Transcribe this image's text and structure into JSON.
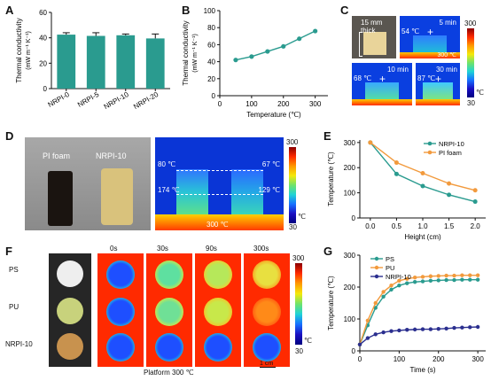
{
  "panels": {
    "A": "A",
    "B": "B",
    "C": "C",
    "D": "D",
    "E": "E",
    "F": "F",
    "G": "G"
  },
  "colors": {
    "teal": "#2a9b8f",
    "orange": "#f29a3d",
    "navy": "#2b2f8f"
  },
  "chart_data": [
    {
      "id": "A",
      "type": "bar",
      "categories": [
        "NRPI-0",
        "NRPI-5",
        "NRPI-10",
        "NRPI-20"
      ],
      "values": [
        42.5,
        41.5,
        42,
        39.5
      ],
      "errors": [
        1.5,
        2.5,
        1,
        3.5
      ],
      "ylabel": "Thermal conductivity",
      "yunit": "(mW m⁻¹ K⁻¹)",
      "ylim": [
        0,
        60
      ],
      "yticks": [
        "0",
        "20",
        "40",
        "60"
      ]
    },
    {
      "id": "B",
      "type": "line",
      "x": [
        50,
        100,
        150,
        200,
        250,
        300
      ],
      "y": [
        42,
        46,
        52,
        58,
        67,
        76
      ],
      "xlabel": "Temperature (℃)",
      "ylabel": "Thermal conductivity",
      "yunit": "(mW m⁻¹ K⁻¹)",
      "xlim": [
        0,
        340
      ],
      "ylim": [
        0,
        100
      ],
      "xticks": [
        "0",
        "100",
        "200",
        "300"
      ],
      "yticks": [
        "0",
        "20",
        "40",
        "60",
        "80",
        "100"
      ]
    },
    {
      "id": "E",
      "type": "line",
      "x": [
        0,
        0.5,
        1.0,
        1.5,
        2.0
      ],
      "series": [
        {
          "name": "NRPI-10",
          "values": [
            300,
            175,
            127,
            92,
            65
          ]
        },
        {
          "name": "PI foam",
          "values": [
            300,
            220,
            178,
            137,
            110
          ]
        }
      ],
      "xlabel": "Height (cm)",
      "ylabel": "Temperature (℃)",
      "xlim": [
        -0.2,
        2.2
      ],
      "ylim": [
        0,
        310
      ],
      "xticks": [
        "0.0",
        "0.5",
        "1.0",
        "1.5",
        "2.0"
      ],
      "yticks": [
        "0",
        "100",
        "200",
        "300"
      ]
    },
    {
      "id": "G",
      "type": "line",
      "x": [
        0,
        20,
        40,
        60,
        80,
        100,
        120,
        140,
        160,
        180,
        200,
        220,
        240,
        260,
        280,
        300
      ],
      "series": [
        {
          "name": "PS",
          "values": [
            20,
            80,
            135,
            170,
            192,
            205,
            212,
            216,
            218,
            220,
            221,
            222,
            222,
            223,
            223,
            223
          ]
        },
        {
          "name": "PU",
          "values": [
            20,
            95,
            150,
            185,
            205,
            220,
            226,
            230,
            232,
            234,
            235,
            236,
            236,
            237,
            237,
            237
          ]
        },
        {
          "name": "NRPI-10",
          "values": [
            20,
            40,
            52,
            58,
            62,
            64,
            66,
            67,
            68,
            68,
            69,
            70,
            72,
            73,
            74,
            75
          ]
        }
      ],
      "xlabel": "Time (s)",
      "ylabel": "Temperature (℃)",
      "xlim": [
        0,
        320
      ],
      "ylim": [
        0,
        300
      ],
      "xticks": [
        "0",
        "100",
        "200",
        "300"
      ],
      "yticks": [
        "0",
        "100",
        "200",
        "300"
      ]
    }
  ],
  "thermal_c": {
    "photo_label": "15 mm thick",
    "tiles": [
      {
        "time": "5 min",
        "temp": "54 ℃",
        "base": "300 ℃"
      },
      {
        "time": "10 min",
        "temp": "68 ℃"
      },
      {
        "time": "30 min",
        "temp": "87 ℃"
      }
    ],
    "cbar": {
      "max": "300",
      "unit": "℃",
      "min": "30"
    }
  },
  "thermal_d": {
    "photo_labels": [
      "PI foam",
      "NRPI-10"
    ],
    "temps": [
      "80 ℃",
      "67 ℃",
      "174 ℃",
      "129 ℃",
      "300 ℃"
    ],
    "cbar": {
      "max": "300",
      "unit": "℃",
      "min": "30"
    }
  },
  "panel_f": {
    "rows": [
      "PS",
      "PU",
      "NRPI-10"
    ],
    "times": [
      "0s",
      "30s",
      "90s",
      "300s"
    ],
    "platform": "Platform 300 ℃",
    "scale": "1 cm",
    "cbar": {
      "max": "300",
      "unit": "℃",
      "min": "30"
    }
  }
}
